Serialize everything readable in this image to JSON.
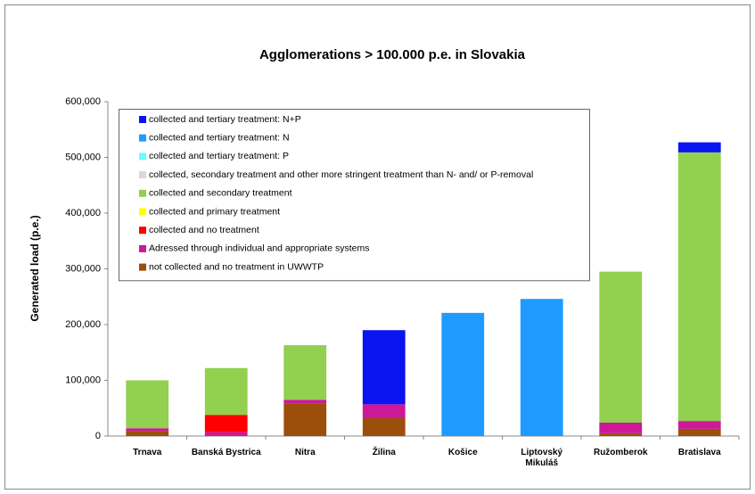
{
  "chart_data": {
    "type": "stacked_bar",
    "title": "Agglomerations > 100.000 p.e. in Slovakia",
    "y_label": "Generated load (p.e.)",
    "categories": [
      "Trnava",
      "Banská Bystrica",
      "Nitra",
      "Žilina",
      "Košice",
      "Liptovský\nMikuláš",
      "Ružomberok",
      "Bratislava"
    ],
    "series": [
      {
        "name": "not collected and no treatment in UWWTP",
        "color": "#9c4f0a",
        "values": [
          9000,
          0,
          59000,
          32000,
          0,
          0,
          5000,
          13000
        ]
      },
      {
        "name": "Adressed through individual and appropriate systems",
        "color": "#cc1899",
        "values": [
          5000,
          7000,
          6000,
          25000,
          0,
          0,
          19000,
          14000
        ]
      },
      {
        "name": "collected and no treatment",
        "color": "#ff0000",
        "values": [
          0,
          31000,
          0,
          0,
          0,
          0,
          0,
          0
        ]
      },
      {
        "name": "collected and primary treatment",
        "color": "#ffff00",
        "values": [
          0,
          0,
          0,
          0,
          0,
          0,
          0,
          0
        ]
      },
      {
        "name": "collected and secondary treatment",
        "color": "#92d050",
        "values": [
          86000,
          84000,
          98000,
          0,
          0,
          0,
          271000,
          482000
        ]
      },
      {
        "name": "collected, secondary treatment and other more stringent treatment than N- and/ or P-removal",
        "color": "#d9d9d9",
        "values": [
          0,
          0,
          0,
          0,
          0,
          0,
          0,
          0
        ]
      },
      {
        "name": "collected and  tertiary treatment: P",
        "color": "#66ffff",
        "values": [
          0,
          0,
          0,
          0,
          0,
          0,
          0,
          0
        ]
      },
      {
        "name": "collected and tertiary treatment: N",
        "color": "#1f9bff",
        "values": [
          0,
          0,
          0,
          0,
          221000,
          246000,
          0,
          0
        ]
      },
      {
        "name": "collected and tertiary treatment: N+P",
        "color": "#0a14f0",
        "values": [
          0,
          0,
          0,
          133000,
          0,
          0,
          0,
          18000
        ]
      }
    ],
    "ylim": [
      0,
      600000
    ],
    "yticks": [
      0,
      {
        "value": 100000,
        "label": "100,000"
      },
      {
        "value": 200000,
        "label": "200,000"
      },
      {
        "value": 300000,
        "label": "300,000"
      },
      {
        "value": 400000,
        "label": "400,000"
      },
      {
        "value": 500000,
        "label": "500,000"
      },
      {
        "value": 600000,
        "label": "600,000"
      }
    ],
    "legend": "top-left"
  }
}
